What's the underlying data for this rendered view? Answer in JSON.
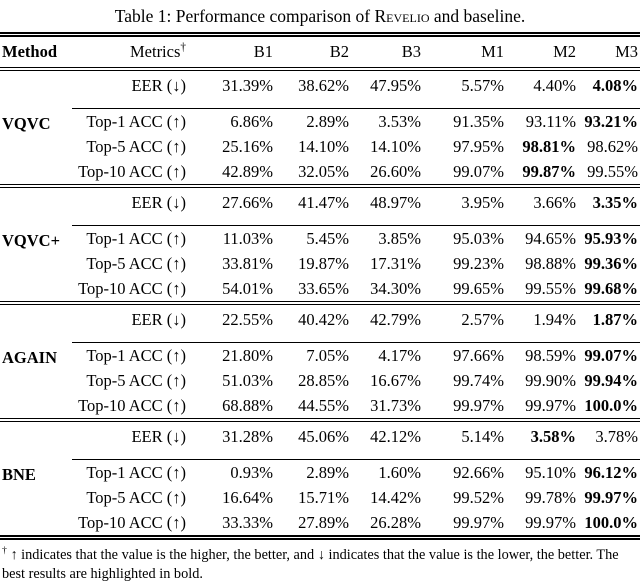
{
  "title": {
    "prefix": "Table 1: Performance comparison of ",
    "smallcaps": "Revelio",
    "suffix": " and baseline."
  },
  "header": {
    "method": "Method",
    "metrics": "Metrics",
    "metrics_sup": "†",
    "columns": [
      "B1",
      "B2",
      "B3",
      "M1",
      "M2",
      "M3"
    ]
  },
  "blocks": [
    {
      "method": "VQVC",
      "rows": [
        {
          "metric": "EER (↓)",
          "values": [
            "31.39%",
            "38.62%",
            "47.95%",
            "5.57%",
            "4.40%",
            "4.08%"
          ],
          "bold": [
            false,
            false,
            false,
            false,
            false,
            true
          ]
        },
        {
          "metric": "Top-1 ACC (↑)",
          "values": [
            "6.86%",
            "2.89%",
            "3.53%",
            "91.35%",
            "93.11%",
            "93.21%"
          ],
          "bold": [
            false,
            false,
            false,
            false,
            false,
            true
          ]
        },
        {
          "metric": "Top-5 ACC (↑)",
          "values": [
            "25.16%",
            "14.10%",
            "14.10%",
            "97.95%",
            "98.81%",
            "98.62%"
          ],
          "bold": [
            false,
            false,
            false,
            false,
            true,
            false
          ]
        },
        {
          "metric": "Top-10 ACC (↑)",
          "values": [
            "42.89%",
            "32.05%",
            "26.60%",
            "99.07%",
            "99.87%",
            "99.55%"
          ],
          "bold": [
            false,
            false,
            false,
            false,
            true,
            false
          ]
        }
      ]
    },
    {
      "method": "VQVC+",
      "rows": [
        {
          "metric": "EER (↓)",
          "values": [
            "27.66%",
            "41.47%",
            "48.97%",
            "3.95%",
            "3.66%",
            "3.35%"
          ],
          "bold": [
            false,
            false,
            false,
            false,
            false,
            true
          ]
        },
        {
          "metric": "Top-1 ACC (↑)",
          "values": [
            "11.03%",
            "5.45%",
            "3.85%",
            "95.03%",
            "94.65%",
            "95.93%"
          ],
          "bold": [
            false,
            false,
            false,
            false,
            false,
            true
          ]
        },
        {
          "metric": "Top-5 ACC (↑)",
          "values": [
            "33.81%",
            "19.87%",
            "17.31%",
            "99.23%",
            "98.88%",
            "99.36%"
          ],
          "bold": [
            false,
            false,
            false,
            false,
            false,
            true
          ]
        },
        {
          "metric": "Top-10 ACC (↑)",
          "values": [
            "54.01%",
            "33.65%",
            "34.30%",
            "99.65%",
            "99.55%",
            "99.68%"
          ],
          "bold": [
            false,
            false,
            false,
            false,
            false,
            true
          ]
        }
      ]
    },
    {
      "method": "AGAIN",
      "rows": [
        {
          "metric": "EER (↓)",
          "values": [
            "22.55%",
            "40.42%",
            "42.79%",
            "2.57%",
            "1.94%",
            "1.87%"
          ],
          "bold": [
            false,
            false,
            false,
            false,
            false,
            true
          ]
        },
        {
          "metric": "Top-1 ACC (↑)",
          "values": [
            "21.80%",
            "7.05%",
            "4.17%",
            "97.66%",
            "98.59%",
            "99.07%"
          ],
          "bold": [
            false,
            false,
            false,
            false,
            false,
            true
          ]
        },
        {
          "metric": "Top-5 ACC (↑)",
          "values": [
            "51.03%",
            "28.85%",
            "16.67%",
            "99.74%",
            "99.90%",
            "99.94%"
          ],
          "bold": [
            false,
            false,
            false,
            false,
            false,
            true
          ]
        },
        {
          "metric": "Top-10 ACC (↑)",
          "values": [
            "68.88%",
            "44.55%",
            "31.73%",
            "99.97%",
            "99.97%",
            "100.0%"
          ],
          "bold": [
            false,
            false,
            false,
            false,
            false,
            true
          ]
        }
      ]
    },
    {
      "method": "BNE",
      "rows": [
        {
          "metric": "EER (↓)",
          "values": [
            "31.28%",
            "45.06%",
            "42.12%",
            "5.14%",
            "3.58%",
            "3.78%"
          ],
          "bold": [
            false,
            false,
            false,
            false,
            true,
            false
          ]
        },
        {
          "metric": "Top-1 ACC (↑)",
          "values": [
            "0.93%",
            "2.89%",
            "1.60%",
            "92.66%",
            "95.10%",
            "96.12%"
          ],
          "bold": [
            false,
            false,
            false,
            false,
            false,
            true
          ]
        },
        {
          "metric": "Top-5 ACC (↑)",
          "values": [
            "16.64%",
            "15.71%",
            "14.42%",
            "99.52%",
            "99.78%",
            "99.97%"
          ],
          "bold": [
            false,
            false,
            false,
            false,
            false,
            true
          ]
        },
        {
          "metric": "Top-10 ACC (↑)",
          "values": [
            "33.33%",
            "27.89%",
            "26.28%",
            "99.97%",
            "99.97%",
            "100.0%"
          ],
          "bold": [
            false,
            false,
            false,
            false,
            false,
            true
          ]
        }
      ]
    }
  ],
  "footnote": {
    "sup": "†",
    "text": "↑ indicates that the value is the higher, the better, and ↓ indicates that the value is the lower, the better. The best results are highlighted in bold."
  }
}
